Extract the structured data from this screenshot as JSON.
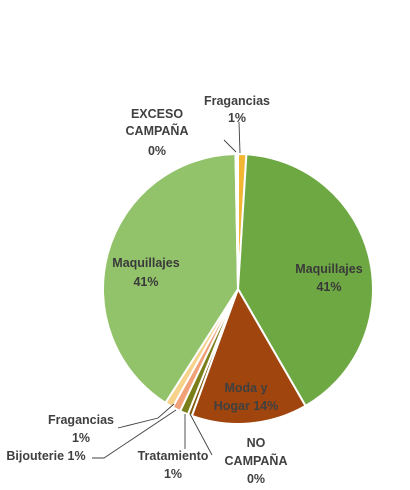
{
  "chart_data": {
    "type": "pie",
    "title": "",
    "slices": [
      {
        "category": "Fragancias",
        "value": 1,
        "value_label": "1%",
        "color": "#f2b632"
      },
      {
        "category": "Maquillajes",
        "value": 41,
        "value_label": "41%",
        "color": "#6ea843"
      },
      {
        "category": "Moda y Hogar",
        "value": 14,
        "value_label": "14%",
        "color": "#a0450e"
      },
      {
        "category": "NO CAMPAÑA",
        "value": 0.5,
        "value_label": "0%",
        "color": "#7f5a0e"
      },
      {
        "category": "Tratamiento",
        "value": 1,
        "value_label": "1%",
        "color": "#7a7f1a"
      },
      {
        "category": "Bijouterie",
        "value": 1,
        "value_label": "1%",
        "color": "#f0a178"
      },
      {
        "category": "Fragancias",
        "value": 1,
        "value_label": "1%",
        "color": "#f6d28a"
      },
      {
        "category": "Maquillajes",
        "value": 41,
        "value_label": "41%",
        "color": "#92c36b"
      },
      {
        "category": "EXCESO CAMPAÑA",
        "value": 0.3,
        "value_label": "0%",
        "color": "#ffffff"
      }
    ],
    "data_labels": {
      "top_fragancias": {
        "name": "Fragancias",
        "value": "1%"
      },
      "exceso_campana": {
        "name": "EXCESO",
        "name2": "CAMPAÑA",
        "value": "0%"
      },
      "maquillajes_right": {
        "name": "Maquillajes",
        "value": "41%"
      },
      "maquillajes_left": {
        "name": "Maquillajes",
        "value": "41%"
      },
      "moda_hogar": {
        "name": "Moda y",
        "name2": "Hogar 14%"
      },
      "fragancias_left": {
        "name": "Fragancias",
        "value": "1%"
      },
      "bijouterie": {
        "text": "Bijouterie 1%"
      },
      "tratamiento": {
        "name": "Tratamiento",
        "value": "1%"
      },
      "no_campana": {
        "name": "NO",
        "name2": "CAMPAÑA",
        "value": "0%"
      }
    },
    "legend": "none"
  }
}
